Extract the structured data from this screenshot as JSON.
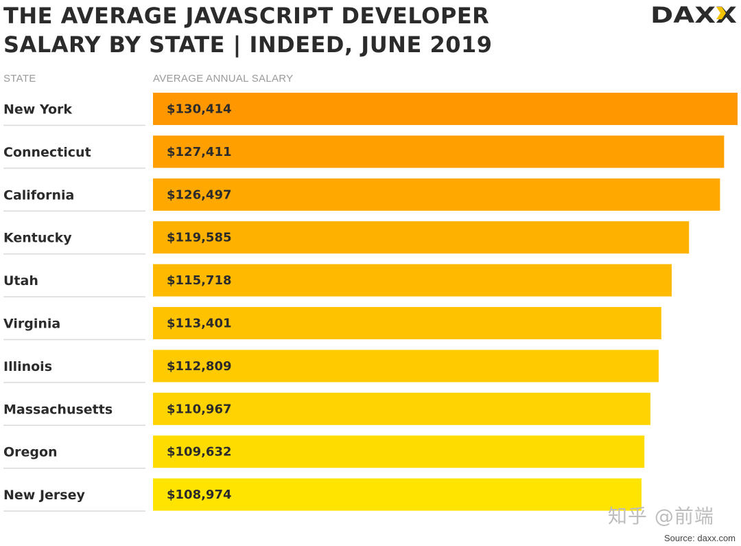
{
  "title": "THE AVERAGE JAVASCRIPT DEVELOPER SALARY BY STATE | INDEED, JUNE 2019",
  "title_lines": [
    "THE AVERAGE JAVASCRIPT DEVELOPER",
    "SALARY BY STATE | INDEED, JUNE 2019"
  ],
  "logo_text": "DAXX",
  "watermark": "知乎 @前端",
  "source": "Source: daxx.com",
  "colors": {
    "bar_top": "#ff9800",
    "bar_bottom": "#ffe400",
    "text_dark": "#2b2b2b",
    "header_gray": "#9a9a9a",
    "divider": "#d9d9d9",
    "logo_accent": "#f5c400"
  },
  "chart_data": {
    "type": "bar",
    "orientation": "horizontal",
    "title": "THE AVERAGE JAVASCRIPT DEVELOPER SALARY BY STATE | INDEED, JUNE 2019",
    "xlabel": "AVERAGE ANNUAL SALARY",
    "ylabel": "STATE",
    "categories": [
      "New York",
      "Connecticut",
      "California",
      "Kentucky",
      "Utah",
      "Virginia",
      "Illinois",
      "Massachusetts",
      "Oregon",
      "New Jersey"
    ],
    "values": [
      130414,
      127411,
      126497,
      119585,
      115718,
      113401,
      112809,
      110967,
      109632,
      108974
    ],
    "labels": [
      "$130,414",
      "$127,411",
      "$126,497",
      "$119,585",
      "$115,718",
      "$113,401",
      "$112,809",
      "$110,967",
      "$109,632",
      "$108,974"
    ],
    "xlim": [
      0,
      130414
    ]
  }
}
